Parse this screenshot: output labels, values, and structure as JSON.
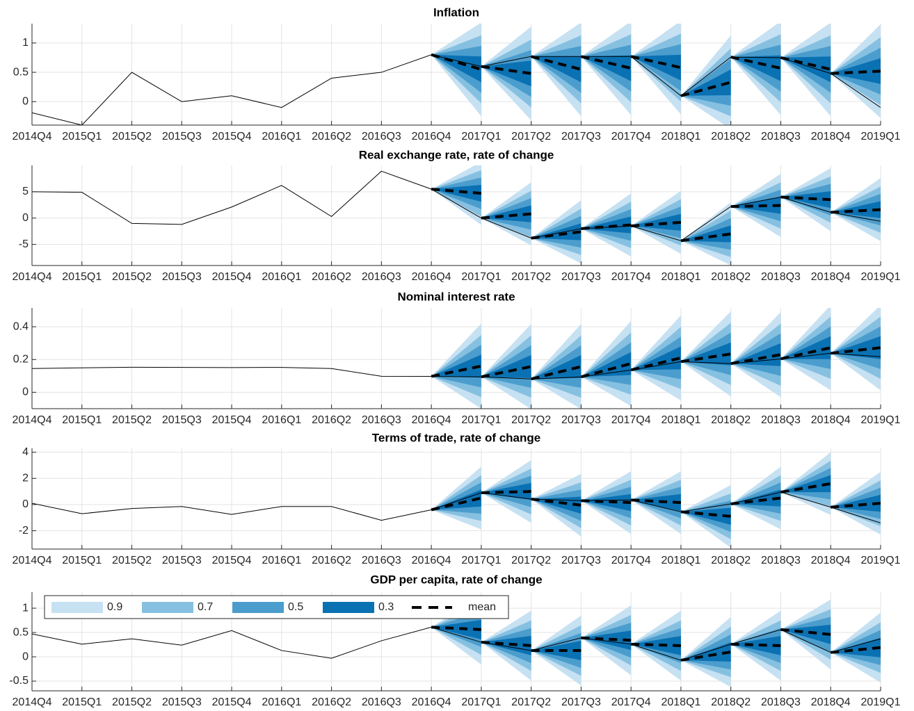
{
  "fan_bands": [
    {
      "name": "0.9",
      "color": "#c6e1f2"
    },
    {
      "name": "0.7",
      "color": "#86c0e1"
    },
    {
      "name": "0.5",
      "color": "#4b9dcd"
    },
    {
      "name": "0.3",
      "color": "#0a71b3"
    }
  ],
  "mean_label": "mean",
  "chart_data": [
    {
      "type": "fan",
      "title": "Inflation",
      "categories": [
        "2014Q4",
        "2015Q1",
        "2015Q2",
        "2015Q3",
        "2015Q4",
        "2016Q1",
        "2016Q2",
        "2016Q3",
        "2016Q4",
        "2017Q1",
        "2017Q2",
        "2017Q3",
        "2017Q4",
        "2018Q1",
        "2018Q2",
        "2018Q3",
        "2018Q4",
        "2019Q1"
      ],
      "values": [
        -0.19,
        -0.4,
        0.5,
        0.0,
        0.1,
        -0.1,
        0.4,
        0.5,
        0.8,
        0.6,
        0.77,
        0.77,
        0.77,
        0.1,
        0.76,
        0.75,
        0.48,
        -0.1
      ],
      "fan_means": [
        null,
        null,
        null,
        null,
        null,
        null,
        null,
        null,
        null,
        0.55,
        0.48,
        0.55,
        0.57,
        0.58,
        0.33,
        0.57,
        0.55,
        0.52
      ],
      "fan_half_widths": [
        0.8,
        0.58,
        0.4,
        0.22
      ],
      "ylim": [
        -0.4,
        1.33
      ],
      "yticks": [
        0,
        0.5,
        1
      ],
      "grid": true
    },
    {
      "type": "fan",
      "title": "Real exchange rate, rate of change",
      "categories": [
        "2014Q4",
        "2015Q1",
        "2015Q2",
        "2015Q3",
        "2015Q4",
        "2016Q1",
        "2016Q2",
        "2016Q3",
        "2016Q4",
        "2017Q1",
        "2017Q2",
        "2017Q3",
        "2017Q4",
        "2018Q1",
        "2018Q2",
        "2018Q3",
        "2018Q4",
        "2019Q1"
      ],
      "values": [
        5.0,
        4.9,
        -1.0,
        -1.2,
        2.1,
        6.2,
        0.3,
        8.9,
        5.5,
        0.0,
        -3.8,
        -2.0,
        -1.5,
        -4.3,
        2.2,
        4.0,
        1.1,
        -0.6
      ],
      "fan_means": [
        null,
        null,
        null,
        null,
        null,
        null,
        null,
        null,
        null,
        4.7,
        0.8,
        -2.6,
        -1.3,
        -0.8,
        -3.0,
        2.4,
        3.5,
        1.6
      ],
      "fan_half_widths": [
        6.0,
        4.4,
        3.0,
        1.6
      ],
      "ylim": [
        -9,
        10
      ],
      "yticks": [
        -5,
        0,
        5
      ],
      "grid": true
    },
    {
      "type": "fan",
      "title": "Nominal interest rate",
      "categories": [
        "2014Q4",
        "2015Q1",
        "2015Q2",
        "2015Q3",
        "2015Q4",
        "2016Q1",
        "2016Q2",
        "2016Q3",
        "2016Q4",
        "2017Q1",
        "2017Q2",
        "2017Q3",
        "2017Q4",
        "2018Q1",
        "2018Q2",
        "2018Q3",
        "2018Q4",
        "2019Q1"
      ],
      "values": [
        0.145,
        0.149,
        0.153,
        0.152,
        0.151,
        0.152,
        0.145,
        0.098,
        0.097,
        0.094,
        0.081,
        0.094,
        0.136,
        0.187,
        0.175,
        0.204,
        0.238,
        0.217
      ],
      "fan_means": [
        null,
        null,
        null,
        null,
        null,
        null,
        null,
        null,
        null,
        0.16,
        0.157,
        0.157,
        0.175,
        0.21,
        0.234,
        0.23,
        0.272,
        0.272
      ],
      "fan_half_widths": [
        0.26,
        0.19,
        0.13,
        0.07
      ],
      "ylim": [
        -0.1,
        0.515
      ],
      "yticks": [
        0,
        0.2,
        0.4
      ],
      "grid": true
    },
    {
      "type": "fan",
      "title": "Terms of trade, rate of change",
      "categories": [
        "2014Q4",
        "2015Q1",
        "2015Q2",
        "2015Q3",
        "2015Q4",
        "2016Q1",
        "2016Q2",
        "2016Q3",
        "2016Q4",
        "2017Q1",
        "2017Q2",
        "2017Q3",
        "2017Q4",
        "2018Q1",
        "2018Q2",
        "2018Q3",
        "2018Q4",
        "2019Q1"
      ],
      "values": [
        0.1,
        -0.7,
        -0.3,
        -0.15,
        -0.75,
        -0.15,
        -0.15,
        -1.2,
        -0.4,
        0.9,
        0.42,
        0.3,
        0.35,
        -0.55,
        0.05,
        0.95,
        -0.2,
        -1.4
      ],
      "fan_means": [
        null,
        null,
        null,
        null,
        null,
        null,
        null,
        null,
        null,
        0.5,
        1.0,
        -0.05,
        0.15,
        0.15,
        -0.9,
        0.5,
        1.6,
        0.1
      ],
      "fan_half_widths": [
        2.4,
        1.75,
        1.2,
        0.65
      ],
      "ylim": [
        -3.4,
        4.3
      ],
      "yticks": [
        -2,
        0,
        2,
        4
      ],
      "grid": true
    },
    {
      "type": "fan",
      "title": "GDP per capita, rate of change",
      "categories": [
        "2014Q4",
        "2015Q1",
        "2015Q2",
        "2015Q3",
        "2015Q4",
        "2016Q1",
        "2016Q2",
        "2016Q3",
        "2016Q4",
        "2017Q1",
        "2017Q2",
        "2017Q3",
        "2017Q4",
        "2018Q1",
        "2018Q2",
        "2018Q3",
        "2018Q4",
        "2019Q1"
      ],
      "values": [
        0.47,
        0.26,
        0.37,
        0.24,
        0.54,
        0.13,
        -0.03,
        0.33,
        0.61,
        0.3,
        0.13,
        0.39,
        0.26,
        -0.07,
        0.26,
        0.56,
        0.09,
        0.37
      ],
      "fan_means": [
        null,
        null,
        null,
        null,
        null,
        null,
        null,
        null,
        null,
        0.56,
        0.23,
        0.13,
        0.34,
        0.23,
        0.1,
        0.23,
        0.46,
        0.19
      ],
      "fan_half_widths": [
        0.72,
        0.52,
        0.36,
        0.2
      ],
      "ylim": [
        -0.7,
        1.33
      ],
      "yticks": [
        -0.5,
        0,
        0.5,
        1
      ],
      "grid": true,
      "legend": "upper left"
    }
  ]
}
